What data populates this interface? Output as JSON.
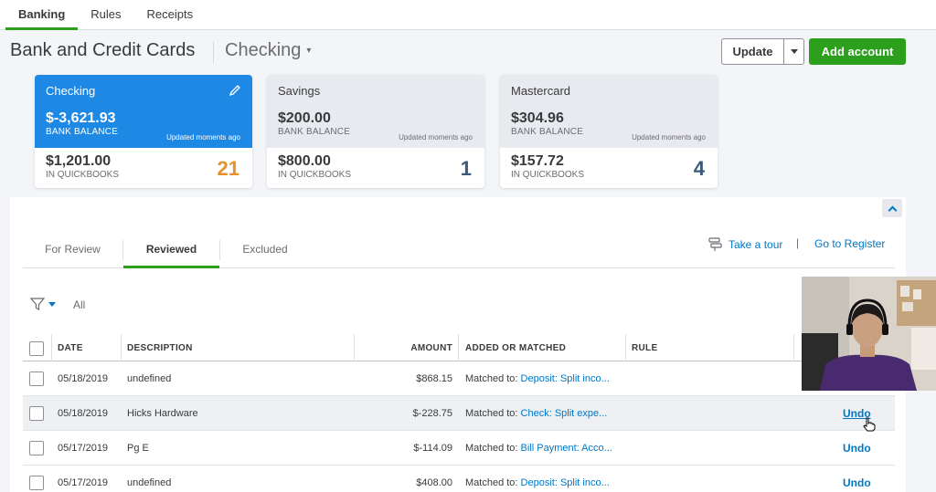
{
  "topnav": {
    "tabs": [
      "Banking",
      "Rules",
      "Receipts"
    ]
  },
  "header": {
    "title": "Bank and Credit Cards",
    "account": "Checking",
    "update_label": "Update",
    "add_account_label": "Add account"
  },
  "cards": [
    {
      "name": "Checking",
      "bank_balance": "$-3,621.93",
      "bank_label": "BANK BALANCE",
      "updated": "Updated moments ago",
      "qb_balance": "$1,201.00",
      "qb_label": "IN QUICKBOOKS",
      "count": "21"
    },
    {
      "name": "Savings",
      "bank_balance": "$200.00",
      "bank_label": "BANK BALANCE",
      "updated": "Updated moments ago",
      "qb_balance": "$800.00",
      "qb_label": "IN QUICKBOOKS",
      "count": "1"
    },
    {
      "name": "Mastercard",
      "bank_balance": "$304.96",
      "bank_label": "BANK BALANCE",
      "updated": "Updated moments ago",
      "qb_balance": "$157.72",
      "qb_label": "IN QUICKBOOKS",
      "count": "4"
    }
  ],
  "subtabs": [
    "For Review",
    "Reviewed",
    "Excluded"
  ],
  "links": {
    "tour": "Take a tour",
    "separator": "|",
    "register": "Go to Register"
  },
  "filter": {
    "all_label": "All"
  },
  "table": {
    "headers": {
      "date": "DATE",
      "description": "DESCRIPTION",
      "amount": "AMOUNT",
      "added": "ADDED OR MATCHED",
      "rule": "RULE"
    },
    "rows": [
      {
        "date": "05/18/2019",
        "description": "undefined",
        "amount": "$868.15",
        "matched_prefix": "Matched to:",
        "matched_link": "Deposit: Split inco...",
        "action": ""
      },
      {
        "date": "05/18/2019",
        "description": "Hicks Hardware",
        "amount": "$-228.75",
        "matched_prefix": "Matched to:",
        "matched_link": "Check: Split expe...",
        "action": "Undo"
      },
      {
        "date": "05/17/2019",
        "description": "Pg E",
        "amount": "$-114.09",
        "matched_prefix": "Matched to:",
        "matched_link": "Bill Payment: Acco...",
        "action": "Undo"
      },
      {
        "date": "05/17/2019",
        "description": "undefined",
        "amount": "$408.00",
        "matched_prefix": "Matched to:",
        "matched_link": "Deposit: Split inco...",
        "action": "Undo"
      }
    ]
  },
  "colors": {
    "accent_green": "#2ca01c",
    "link_blue": "#0077c5",
    "card_active": "#1e88e5",
    "count_orange": "#e8902a",
    "count_blue": "#3b5a7a"
  }
}
